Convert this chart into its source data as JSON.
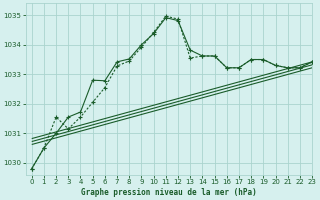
{
  "title": "Graphe pression niveau de la mer (hPa)",
  "background_color": "#d6f0ee",
  "grid_color": "#aad4ce",
  "line_color": "#1a5c2a",
  "xlim": [
    -0.5,
    23
  ],
  "ylim": [
    1029.6,
    1035.4
  ],
  "yticks": [
    1030,
    1031,
    1032,
    1033,
    1034,
    1035
  ],
  "xticks": [
    0,
    1,
    2,
    3,
    4,
    5,
    6,
    7,
    8,
    9,
    10,
    11,
    12,
    13,
    14,
    15,
    16,
    17,
    18,
    19,
    20,
    21,
    22,
    23
  ],
  "series1_x": [
    0,
    1,
    2,
    3,
    4,
    5,
    6,
    7,
    8,
    9,
    10,
    11,
    12,
    13,
    14,
    15,
    16,
    17,
    18,
    19,
    20,
    21,
    22,
    23
  ],
  "series1_y": [
    1029.8,
    1030.5,
    1031.55,
    1031.15,
    1031.55,
    1032.05,
    1032.55,
    1033.28,
    1033.45,
    1033.92,
    1034.42,
    1034.97,
    1034.87,
    1033.55,
    1033.62,
    1033.62,
    1033.22,
    1033.22,
    1033.5,
    1033.5,
    1033.3,
    1033.22,
    1033.22,
    1033.42
  ],
  "series2_x": [
    0,
    1,
    2,
    3,
    4,
    5,
    6,
    7,
    8,
    9,
    10,
    11,
    12,
    13,
    14,
    15,
    16,
    17,
    18,
    19,
    20,
    21,
    22,
    23
  ],
  "series2_y": [
    1029.8,
    1030.5,
    1031.0,
    1031.55,
    1031.72,
    1032.8,
    1032.78,
    1033.42,
    1033.52,
    1034.0,
    1034.38,
    1034.92,
    1034.82,
    1033.82,
    1033.62,
    1033.62,
    1033.22,
    1033.22,
    1033.5,
    1033.5,
    1033.3,
    1033.22,
    1033.22,
    1033.42
  ],
  "straight_lines": [
    [
      [
        0,
        23
      ],
      [
        1030.82,
        1033.42
      ]
    ],
    [
      [
        0,
        23
      ],
      [
        1030.72,
        1033.32
      ]
    ],
    [
      [
        0,
        23
      ],
      [
        1030.62,
        1033.22
      ]
    ]
  ]
}
